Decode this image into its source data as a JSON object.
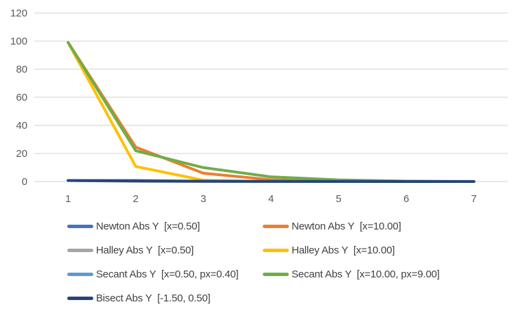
{
  "chart": {
    "background": "#ffffff",
    "grid_color": "#d9d9d9",
    "axis_label_color": "#595959",
    "legend_text_color": "#404040"
  },
  "chart_data": {
    "type": "line",
    "x": [
      1,
      2,
      3,
      4,
      5,
      6,
      7
    ],
    "title": "",
    "xlabel": "",
    "ylabel": "",
    "ylim": [
      0,
      120
    ],
    "yticks": [
      0,
      20,
      40,
      60,
      80,
      100,
      120
    ],
    "grid": "horizontal",
    "legend_position": "bottom",
    "series": [
      {
        "name": "Newton Abs Y  [x=0.50]",
        "color": "#4472C4",
        "values": [
          0.75,
          0.56,
          0.05,
          0.002,
          0,
          0,
          0
        ]
      },
      {
        "name": "Newton Abs Y  [x=10.00]",
        "color": "#ED7D31",
        "values": [
          99,
          24.5,
          5.89,
          1.26,
          0.17,
          0.01,
          0
        ]
      },
      {
        "name": "Halley Abs Y  [x=0.50]",
        "color": "#A5A5A5",
        "values": [
          0.75,
          0.14,
          0.01,
          0,
          0,
          0,
          0
        ]
      },
      {
        "name": "Halley Abs Y  [x=10.00]",
        "color": "#FFC000",
        "values": [
          99,
          10.71,
          0.94,
          0.02,
          0,
          0,
          0
        ]
      },
      {
        "name": "Secant Abs Y  [x=0.50, px=0.40]",
        "color": "#5B9BD5",
        "values": [
          0.75,
          0.78,
          0.17,
          0.03,
          0,
          0,
          0
        ]
      },
      {
        "name": "Secant Abs Y  [x=10.00, px=9.00]",
        "color": "#70AD47",
        "values": [
          99,
          21.94,
          9.93,
          3.33,
          1.14,
          0.3,
          0.04
        ]
      },
      {
        "name": "Bisect Abs Y  [-1.50, 0.50]",
        "color": "#264478",
        "values": [
          0.75,
          0.44,
          0.23,
          0.12,
          0.06,
          0.03,
          0.02
        ]
      }
    ]
  }
}
